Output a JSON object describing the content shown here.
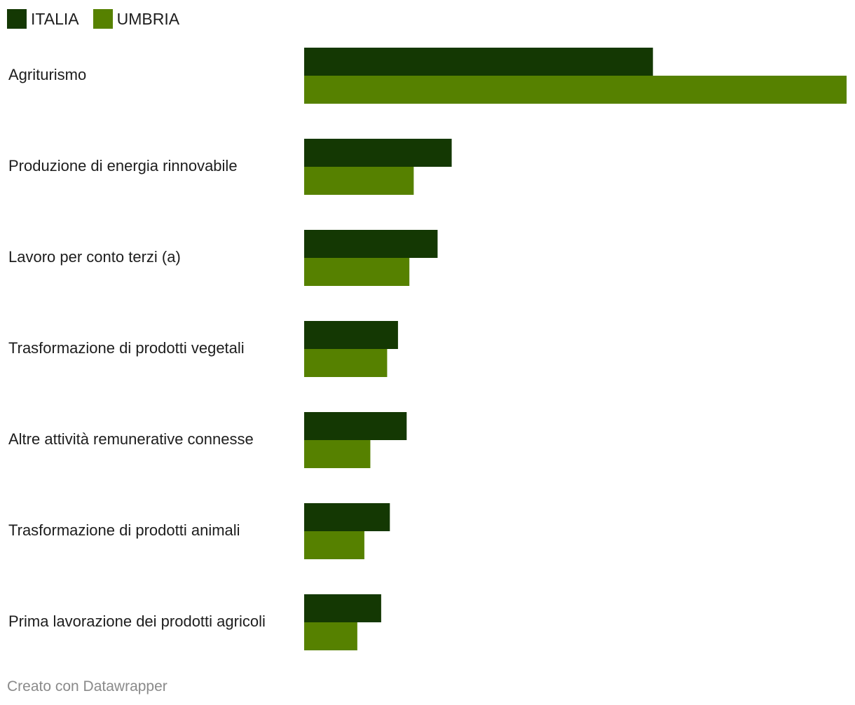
{
  "chart_data": {
    "type": "bar",
    "orientation": "horizontal",
    "categories": [
      "Agriturismo",
      "Produzione di energia rinnovabile",
      "Lavoro per conto terzi (a)",
      "Trasformazione di prodotti vegetali",
      "Altre attività remunerative connesse",
      "Trasformazione di prodotti animali",
      "Prima lavorazione dei prodotti agricoli"
    ],
    "series": [
      {
        "name": "ITALIA",
        "color": "#143803",
        "values": [
          64.3,
          27.2,
          24.6,
          17.3,
          18.9,
          15.8,
          14.2
        ]
      },
      {
        "name": "UMBRIA",
        "color": "#568100",
        "values": [
          100.0,
          20.2,
          19.4,
          15.3,
          12.2,
          11.1,
          9.8
        ]
      }
    ],
    "xlim": [
      0,
      100
    ],
    "grid": false,
    "legend_position": "top-left"
  },
  "footer": {
    "credit": "Creato con Datawrapper"
  }
}
